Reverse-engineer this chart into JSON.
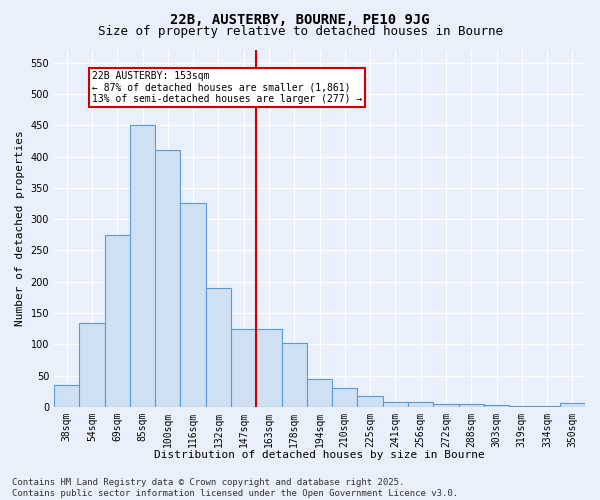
{
  "title": "22B, AUSTERBY, BOURNE, PE10 9JG",
  "subtitle": "Size of property relative to detached houses in Bourne",
  "xlabel": "Distribution of detached houses by size in Bourne",
  "ylabel": "Number of detached properties",
  "categories": [
    "38sqm",
    "54sqm",
    "69sqm",
    "85sqm",
    "100sqm",
    "116sqm",
    "132sqm",
    "147sqm",
    "163sqm",
    "178sqm",
    "194sqm",
    "210sqm",
    "225sqm",
    "241sqm",
    "256sqm",
    "272sqm",
    "288sqm",
    "303sqm",
    "319sqm",
    "334sqm",
    "350sqm"
  ],
  "values": [
    35,
    135,
    275,
    450,
    410,
    325,
    190,
    125,
    125,
    103,
    45,
    30,
    18,
    8,
    8,
    5,
    5,
    3,
    2,
    2,
    6
  ],
  "bar_color": "#cfe0f3",
  "bar_edge_color": "#5b9bd5",
  "vline_x": 7.5,
  "annotation_title": "22B AUSTERBY: 153sqm",
  "annotation_line1": "← 87% of detached houses are smaller (1,861)",
  "annotation_line2": "13% of semi-detached houses are larger (277) →",
  "annotation_box_color": "#ffffff",
  "annotation_box_edge": "#cc0000",
  "vline_color": "#cc0000",
  "footer1": "Contains HM Land Registry data © Crown copyright and database right 2025.",
  "footer2": "Contains public sector information licensed under the Open Government Licence v3.0.",
  "ylim": [
    0,
    570
  ],
  "yticks": [
    0,
    50,
    100,
    150,
    200,
    250,
    300,
    350,
    400,
    450,
    500,
    550
  ],
  "background_color": "#eaf0fb",
  "grid_color": "#ffffff",
  "title_fontsize": 10,
  "subtitle_fontsize": 9,
  "axis_label_fontsize": 8,
  "tick_fontsize": 7,
  "annotation_fontsize": 7,
  "footer_fontsize": 6.5
}
